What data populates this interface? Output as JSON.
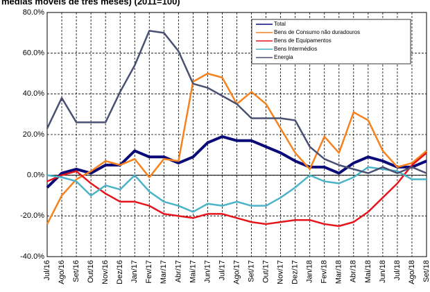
{
  "chart_data": {
    "type": "line",
    "title": "médias móveis de três meses) (2011=100)",
    "categories": [
      "Jul/16",
      "Ago/16",
      "Set/16",
      "Out/16",
      "Nov/16",
      "Dez/16",
      "Jan/17",
      "Fev/17",
      "Mar/17",
      "Abr/17",
      "Mai/17",
      "Jun/17",
      "Jul/17",
      "Ago/17",
      "Set/17",
      "Out/17",
      "Nov/17",
      "Dez/17",
      "Jan/18",
      "Fev/18",
      "Mar/18",
      "Abr/18",
      "Mai/18",
      "Jun/18",
      "Jul/18",
      "Ago/18",
      "Set/18"
    ],
    "series": [
      {
        "name": "Total",
        "color": "#0a0a78",
        "values": [
          -6,
          1,
          3,
          1,
          5,
          5,
          12,
          9,
          9,
          6,
          9,
          16,
          19,
          17,
          17,
          14,
          11,
          7,
          4,
          4,
          1,
          6,
          9,
          7,
          4,
          4,
          7
        ]
      },
      {
        "name": "Bens de Consumo não duradouros",
        "color": "#f5821f",
        "values": [
          -24,
          -10,
          -2,
          2,
          7,
          5,
          8,
          -1,
          8,
          7,
          46,
          50,
          48,
          35,
          41,
          35,
          23,
          11,
          3,
          19,
          11,
          31,
          27,
          12,
          4,
          6,
          12
        ]
      },
      {
        "name": "Bens de Equipamentos",
        "color": "#e8141c",
        "values": [
          -3,
          0,
          2,
          -4,
          -9,
          -13,
          -13,
          -15,
          -19,
          -20,
          -21,
          -19,
          -19,
          -21,
          -23,
          -24,
          -23,
          -22,
          -22,
          -24,
          -25,
          -23,
          -18,
          -11,
          -4,
          5,
          11
        ]
      },
      {
        "name": "Bens Intermédios",
        "color": "#4ab3c8",
        "values": [
          0,
          -1,
          -3,
          -10,
          -5,
          -7,
          0,
          -8,
          -13,
          -15,
          -18,
          -14,
          -15,
          -13,
          -15,
          -15,
          -11,
          -6,
          0,
          -3,
          -4,
          -1,
          4,
          3,
          2,
          -2,
          -2
        ]
      },
      {
        "name": "Energia",
        "color": "#4a5073",
        "values": [
          23,
          38,
          26,
          26,
          26,
          41,
          54,
          71,
          70,
          61,
          45,
          43,
          39,
          35,
          28,
          28,
          28,
          27,
          14,
          8,
          5,
          3,
          1,
          4,
          1,
          4,
          1
        ]
      }
    ],
    "ylim": [
      -40,
      80
    ],
    "yticks": [
      {
        "value": -40,
        "label": "-40.0%"
      },
      {
        "value": -20,
        "label": "-20.0%"
      },
      {
        "value": 0,
        "label": "0.0%"
      },
      {
        "value": 20,
        "label": "20.0%"
      },
      {
        "value": 40,
        "label": "40.0%"
      },
      {
        "value": 60,
        "label": "60.0%"
      },
      {
        "value": 80,
        "label": "80.0%"
      }
    ],
    "grid": true
  }
}
